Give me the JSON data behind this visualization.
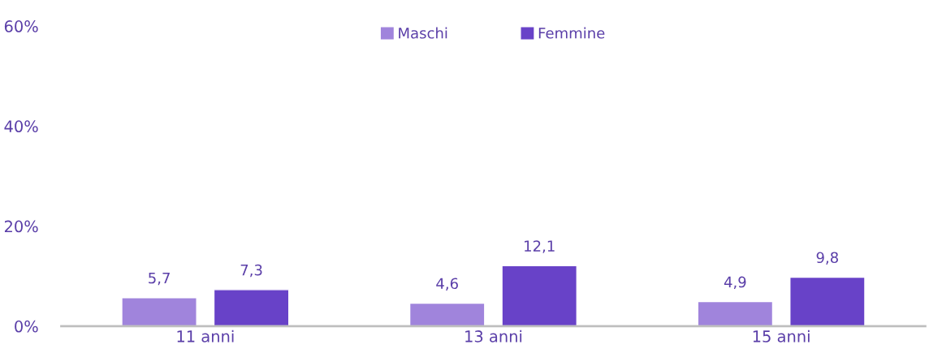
{
  "chart_data": {
    "type": "bar",
    "categories": [
      "11 anni",
      "13 anni",
      "15 anni"
    ],
    "series": [
      {
        "name": "Maschi",
        "color": "#a084dc",
        "values": [
          5.7,
          4.6,
          4.9
        ],
        "value_labels": [
          "5,7",
          "4,6",
          "4,9"
        ]
      },
      {
        "name": "Femmine",
        "color": "#6842c8",
        "values": [
          7.3,
          12.1,
          9.8
        ],
        "value_labels": [
          "7,3",
          "12,1",
          "9,8"
        ]
      }
    ],
    "ylim": [
      0,
      60
    ],
    "yticks": [
      {
        "value": 0,
        "label": "0%"
      },
      {
        "value": 20,
        "label": "20%"
      },
      {
        "value": 40,
        "label": "40%"
      },
      {
        "value": 60,
        "label": "60%"
      }
    ],
    "grid": false,
    "legend": "top"
  }
}
